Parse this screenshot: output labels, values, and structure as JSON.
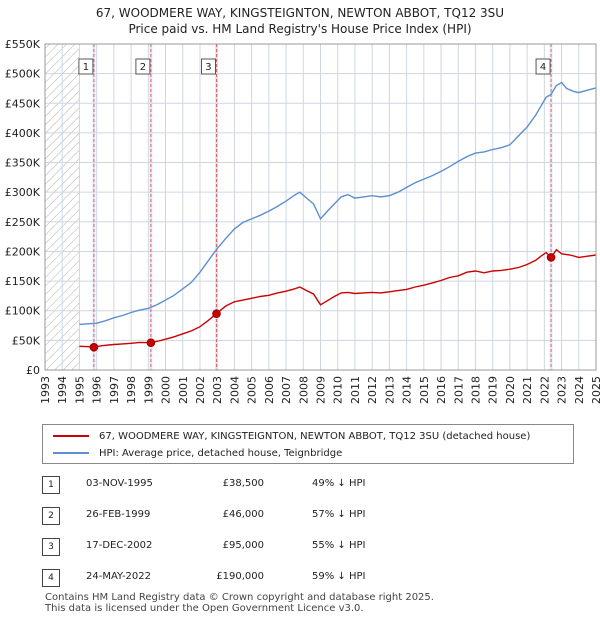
{
  "header": {
    "title_line1": "67, WOODMERE WAY, KINGSTEIGNTON, NEWTON ABBOT, TQ12 3SU",
    "title_line2": "Price paid vs. HM Land Registry's House Price Index (HPI)"
  },
  "colors": {
    "red": "#cc0000",
    "blue": "#5b8fcf",
    "shade": "#dfe7f5",
    "grid": "#cfd6e3"
  },
  "chart_data": {
    "type": "line",
    "xlim": [
      1993,
      2025
    ],
    "ylim": [
      0,
      550000
    ],
    "y_ticks": [
      {
        "value": 0,
        "label": "£0"
      },
      {
        "value": 50000,
        "label": "£50K"
      },
      {
        "value": 100000,
        "label": "£100K"
      },
      {
        "value": 150000,
        "label": "£150K"
      },
      {
        "value": 200000,
        "label": "£200K"
      },
      {
        "value": 250000,
        "label": "£250K"
      },
      {
        "value": 300000,
        "label": "£300K"
      },
      {
        "value": 350000,
        "label": "£350K"
      },
      {
        "value": 400000,
        "label": "£400K"
      },
      {
        "value": 450000,
        "label": "£450K"
      },
      {
        "value": 500000,
        "label": "£500K"
      },
      {
        "value": 550000,
        "label": "£550K"
      }
    ],
    "x_ticks": [
      "1993",
      "1994",
      "1995",
      "1996",
      "1997",
      "1998",
      "1999",
      "2000",
      "2001",
      "2002",
      "2003",
      "2004",
      "2005",
      "2006",
      "2007",
      "2008",
      "2009",
      "2010",
      "2011",
      "2012",
      "2013",
      "2014",
      "2015",
      "2016",
      "2017",
      "2018",
      "2019",
      "2020",
      "2021",
      "2022",
      "2023",
      "2024",
      "2025"
    ],
    "hatch_range": [
      1993,
      1995
    ],
    "series": [
      {
        "name": "67, WOODMERE WAY, KINGSTEIGNTON, NEWTON ABBOT, TQ12 3SU (detached house)",
        "color": "#cc0000",
        "points": [
          [
            1995.0,
            40000
          ],
          [
            1995.4,
            39500
          ],
          [
            1995.84,
            38500
          ],
          [
            1996.3,
            41000
          ],
          [
            1997.0,
            43000
          ],
          [
            1997.5,
            44000
          ],
          [
            1998.0,
            45000
          ],
          [
            1998.5,
            46500
          ],
          [
            1999.15,
            46000
          ],
          [
            1999.6,
            49000
          ],
          [
            2000.0,
            52000
          ],
          [
            2000.5,
            56000
          ],
          [
            2001.0,
            61000
          ],
          [
            2001.5,
            66000
          ],
          [
            2002.0,
            73000
          ],
          [
            2002.5,
            84000
          ],
          [
            2002.96,
            95000
          ],
          [
            2003.5,
            108000
          ],
          [
            2004.0,
            115000
          ],
          [
            2004.5,
            118000
          ],
          [
            2005.0,
            121000
          ],
          [
            2005.5,
            124000
          ],
          [
            2006.0,
            126000
          ],
          [
            2006.5,
            130000
          ],
          [
            2007.0,
            133000
          ],
          [
            2007.5,
            137000
          ],
          [
            2007.8,
            140000
          ],
          [
            2008.2,
            134000
          ],
          [
            2008.6,
            128000
          ],
          [
            2009.0,
            110000
          ],
          [
            2009.4,
            117000
          ],
          [
            2009.8,
            124000
          ],
          [
            2010.2,
            130000
          ],
          [
            2010.6,
            131000
          ],
          [
            2011.0,
            129000
          ],
          [
            2011.5,
            130000
          ],
          [
            2012.0,
            131000
          ],
          [
            2012.5,
            130000
          ],
          [
            2013.0,
            132000
          ],
          [
            2013.5,
            134000
          ],
          [
            2014.0,
            136000
          ],
          [
            2014.5,
            140000
          ],
          [
            2015.0,
            143000
          ],
          [
            2015.5,
            147000
          ],
          [
            2016.0,
            151000
          ],
          [
            2016.5,
            156000
          ],
          [
            2017.0,
            159000
          ],
          [
            2017.5,
            165000
          ],
          [
            2018.0,
            167000
          ],
          [
            2018.5,
            164000
          ],
          [
            2019.0,
            167000
          ],
          [
            2019.5,
            168000
          ],
          [
            2020.0,
            170000
          ],
          [
            2020.5,
            173000
          ],
          [
            2021.0,
            178000
          ],
          [
            2021.5,
            185000
          ],
          [
            2021.8,
            192000
          ],
          [
            2022.1,
            198000
          ],
          [
            2022.39,
            190000
          ],
          [
            2022.7,
            203000
          ],
          [
            2023.0,
            196000
          ],
          [
            2023.5,
            194000
          ],
          [
            2024.0,
            190000
          ],
          [
            2024.5,
            192000
          ],
          [
            2025.0,
            194000
          ]
        ]
      },
      {
        "name": "HPI: Average price, detached house, Teignbridge",
        "color": "#5b8fcf",
        "points": [
          [
            1995.0,
            77000
          ],
          [
            1995.5,
            78000
          ],
          [
            1996.0,
            79000
          ],
          [
            1996.5,
            83000
          ],
          [
            1997.0,
            88000
          ],
          [
            1997.5,
            92000
          ],
          [
            1998.0,
            97000
          ],
          [
            1998.5,
            101000
          ],
          [
            1999.0,
            104000
          ],
          [
            1999.5,
            110000
          ],
          [
            2000.0,
            118000
          ],
          [
            2000.5,
            126000
          ],
          [
            2001.0,
            137000
          ],
          [
            2001.5,
            148000
          ],
          [
            2002.0,
            165000
          ],
          [
            2002.5,
            185000
          ],
          [
            2003.0,
            205000
          ],
          [
            2003.5,
            222000
          ],
          [
            2004.0,
            238000
          ],
          [
            2004.5,
            249000
          ],
          [
            2005.0,
            255000
          ],
          [
            2005.5,
            261000
          ],
          [
            2006.0,
            268000
          ],
          [
            2006.5,
            276000
          ],
          [
            2007.0,
            285000
          ],
          [
            2007.5,
            295000
          ],
          [
            2007.8,
            300000
          ],
          [
            2008.2,
            290000
          ],
          [
            2008.6,
            280000
          ],
          [
            2009.0,
            255000
          ],
          [
            2009.4,
            268000
          ],
          [
            2009.8,
            280000
          ],
          [
            2010.2,
            292000
          ],
          [
            2010.6,
            296000
          ],
          [
            2011.0,
            290000
          ],
          [
            2011.5,
            292000
          ],
          [
            2012.0,
            294000
          ],
          [
            2012.5,
            292000
          ],
          [
            2013.0,
            294000
          ],
          [
            2013.5,
            300000
          ],
          [
            2014.0,
            308000
          ],
          [
            2014.5,
            316000
          ],
          [
            2015.0,
            322000
          ],
          [
            2015.5,
            328000
          ],
          [
            2016.0,
            335000
          ],
          [
            2016.5,
            343000
          ],
          [
            2017.0,
            352000
          ],
          [
            2017.5,
            360000
          ],
          [
            2018.0,
            366000
          ],
          [
            2018.5,
            368000
          ],
          [
            2019.0,
            372000
          ],
          [
            2019.5,
            375000
          ],
          [
            2020.0,
            380000
          ],
          [
            2020.5,
            395000
          ],
          [
            2021.0,
            410000
          ],
          [
            2021.5,
            430000
          ],
          [
            2021.8,
            445000
          ],
          [
            2022.1,
            460000
          ],
          [
            2022.39,
            465000
          ],
          [
            2022.7,
            480000
          ],
          [
            2023.0,
            485000
          ],
          [
            2023.3,
            475000
          ],
          [
            2023.7,
            470000
          ],
          [
            2024.0,
            468000
          ],
          [
            2024.5,
            472000
          ],
          [
            2025.0,
            476000
          ]
        ]
      }
    ],
    "sales": [
      {
        "num": "1",
        "year": 1995.84,
        "price": 38500
      },
      {
        "num": "2",
        "year": 1999.15,
        "price": 46000
      },
      {
        "num": "3",
        "year": 2002.96,
        "price": 95000
      },
      {
        "num": "4",
        "year": 2022.39,
        "price": 190000
      }
    ]
  },
  "legend": {
    "red_label": "67, WOODMERE WAY, KINGSTEIGNTON, NEWTON ABBOT, TQ12 3SU (detached house)",
    "blue_label": "HPI: Average price, detached house, Teignbridge"
  },
  "transactions": [
    {
      "num": "1",
      "date": "03-NOV-1995",
      "price": "£38,500",
      "hpi": "49% ↓ HPI"
    },
    {
      "num": "2",
      "date": "26-FEB-1999",
      "price": "£46,000",
      "hpi": "57% ↓ HPI"
    },
    {
      "num": "3",
      "date": "17-DEC-2002",
      "price": "£95,000",
      "hpi": "55% ↓ HPI"
    },
    {
      "num": "4",
      "date": "24-MAY-2022",
      "price": "£190,000",
      "hpi": "59% ↓ HPI"
    }
  ],
  "footer": {
    "line1": "Contains HM Land Registry data © Crown copyright and database right 2025.",
    "line2": "This data is licensed under the Open Government Licence v3.0."
  }
}
